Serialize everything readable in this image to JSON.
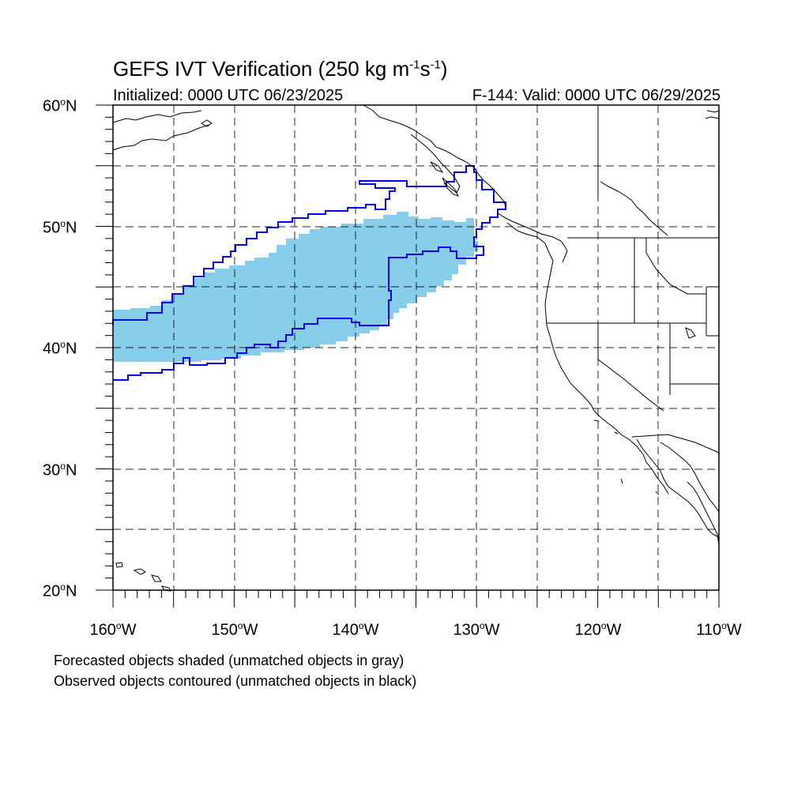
{
  "title": {
    "main": "GEFS IVT Verification (250 kg m",
    "exp1": "-1",
    "mid": "s",
    "exp2": "-1",
    "end": ")"
  },
  "init_label": "Initialized: 0000 UTC 06/23/2025",
  "valid_label": "F-144: Valid: 0000 UTC 06/29/2025",
  "lat_labels": [
    {
      "deg": "60",
      "hem": "N"
    },
    {
      "deg": "50",
      "hem": "N"
    },
    {
      "deg": "40",
      "hem": "N"
    },
    {
      "deg": "30",
      "hem": "N"
    },
    {
      "deg": "20",
      "hem": "N"
    }
  ],
  "lon_labels": [
    {
      "deg": "160",
      "hem": "W"
    },
    {
      "deg": "150",
      "hem": "W"
    },
    {
      "deg": "140",
      "hem": "W"
    },
    {
      "deg": "130",
      "hem": "W"
    },
    {
      "deg": "120",
      "hem": "W"
    },
    {
      "deg": "110",
      "hem": "W"
    }
  ],
  "degree_symbol": "o",
  "notes": {
    "forecast": "Forecasted objects shaded (unmatched objects in gray)",
    "observed": "Observed objects contoured (unmatched objects in black)"
  },
  "colors": {
    "forecast_fill": "#87ceeb",
    "observed_contour": "#0000ff",
    "coastline": "#000000",
    "grid": "#000000"
  },
  "map_extent": {
    "lon_min": -160,
    "lon_max": -110,
    "lat_min": 20,
    "lat_max": 60
  }
}
